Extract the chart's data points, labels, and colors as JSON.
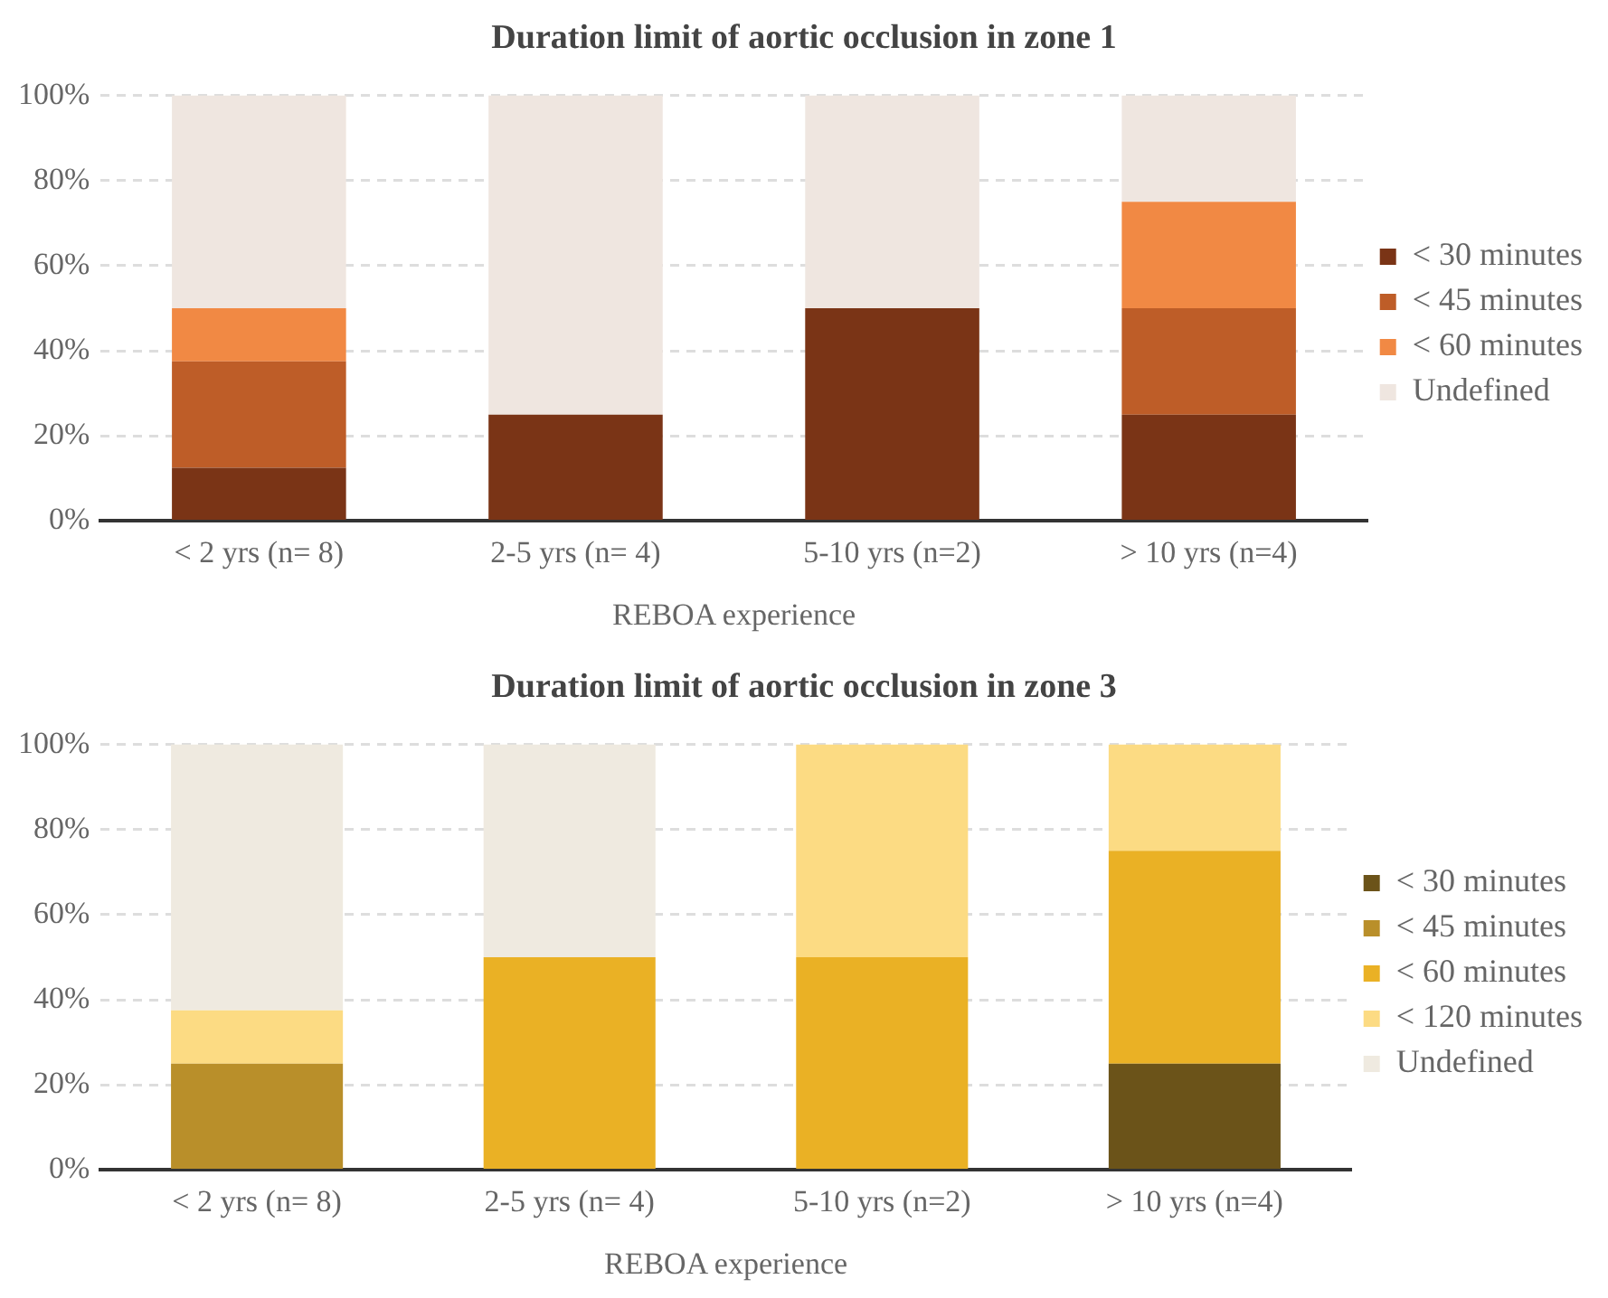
{
  "chart_data": [
    {
      "type": "bar",
      "title": "Duration limit of aortic occlusion in zone 1",
      "xlabel": "REBOA experience",
      "categories": [
        "< 2 yrs (n= 8)",
        "2-5 yrs (n= 4)",
        "5-10 yrs (n=2)",
        "> 10 yrs (n=4)"
      ],
      "stacked": true,
      "ylim": [
        0,
        100
      ],
      "yticks": [
        {
          "value": 0,
          "label": "0%"
        },
        {
          "value": 20,
          "label": "20%"
        },
        {
          "value": 40,
          "label": "40%"
        },
        {
          "value": 60,
          "label": "60%"
        },
        {
          "value": 80,
          "label": "80%"
        },
        {
          "value": 100,
          "label": "100%"
        }
      ],
      "grid": "y",
      "legend": "right",
      "series": [
        {
          "name": "< 30 minutes",
          "color": "#7a3416",
          "values": [
            12.5,
            25,
            50,
            25
          ]
        },
        {
          "name": "< 45 minutes",
          "color": "#be5d28",
          "values": [
            25,
            0,
            0,
            25
          ]
        },
        {
          "name": "< 60 minutes",
          "color": "#f18944",
          "values": [
            12.5,
            0,
            0,
            25
          ]
        },
        {
          "name": "Undefined",
          "color": "#efe6e0",
          "values": [
            50,
            75,
            50,
            25
          ]
        }
      ]
    },
    {
      "type": "bar",
      "title": "Duration limit of aortic occlusion in zone 3",
      "xlabel": "REBOA experience",
      "categories": [
        "< 2 yrs (n= 8)",
        "2-5 yrs (n= 4)",
        "5-10 yrs (n=2)",
        "> 10 yrs (n=4)"
      ],
      "stacked": true,
      "ylim": [
        0,
        100
      ],
      "yticks": [
        {
          "value": 0,
          "label": "0%"
        },
        {
          "value": 20,
          "label": "20%"
        },
        {
          "value": 40,
          "label": "40%"
        },
        {
          "value": 60,
          "label": "60%"
        },
        {
          "value": 80,
          "label": "80%"
        },
        {
          "value": 100,
          "label": "100%"
        }
      ],
      "grid": "y",
      "legend": "right",
      "series": [
        {
          "name": "< 30 minutes",
          "color": "#6b5319",
          "values": [
            0,
            0,
            0,
            25
          ]
        },
        {
          "name": "< 45 minutes",
          "color": "#b98f2a",
          "values": [
            25,
            0,
            0,
            0
          ]
        },
        {
          "name": "< 60 minutes",
          "color": "#eab125",
          "values": [
            0,
            50,
            50,
            50
          ]
        },
        {
          "name": "< 120 minutes",
          "color": "#fcdb83",
          "values": [
            12.5,
            0,
            50,
            25
          ]
        },
        {
          "name": "Undefined",
          "color": "#efeae0",
          "values": [
            62.5,
            50,
            0,
            0
          ]
        }
      ]
    }
  ]
}
